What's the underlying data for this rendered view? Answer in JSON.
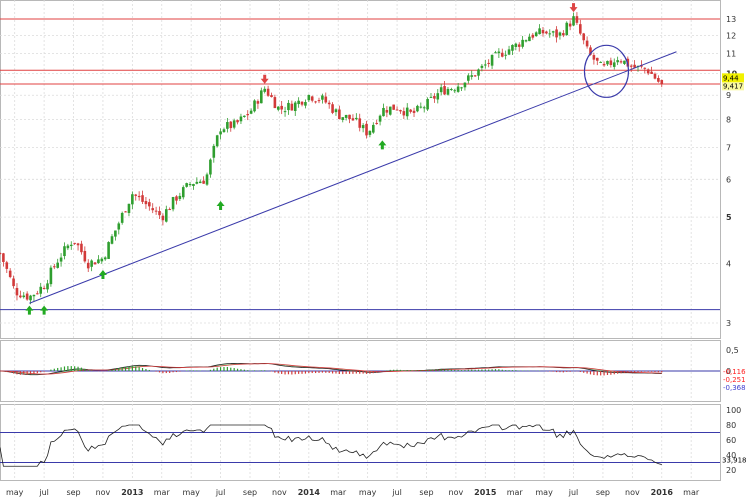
{
  "colors": {
    "up": "#2f9e2f",
    "down": "#d23a3a",
    "trendline": "#3a3aaa",
    "level": "#e14040",
    "grid": "#dcdcdc",
    "macd_fill_pos": "#7acb7a",
    "macd_fill_neg": "#e89aa6",
    "arrow_up": "#22aa22",
    "arrow_down": "#dd4444",
    "price_tag": "#f2f200",
    "indicator_tag_red": "#ff2020",
    "indicator_tag_blue": "#4040d0"
  },
  "chart_data": [
    {
      "type": "candlestick",
      "name": "price",
      "y_scale": "log",
      "ylim": [
        3.0,
        13.8
      ],
      "y_ticks": [
        "3",
        "4",
        "5",
        "6",
        "7",
        "8",
        "9",
        "10",
        "11",
        "12",
        "13"
      ],
      "x_ticks": [
        "may",
        "jul",
        "sep",
        "nov",
        "2013",
        "mar",
        "may",
        "jul",
        "sep",
        "nov",
        "2014",
        "mar",
        "may",
        "jul",
        "sep",
        "nov",
        "2015",
        "mar",
        "may",
        "jul",
        "sep",
        "nov",
        "2016",
        "mar"
      ],
      "x_ticks_bold": [
        "2013",
        "2014",
        "2015",
        "2016"
      ],
      "last_price_label": "9,44",
      "second_price_label": "9,417",
      "horizontal_levels": [
        13.0,
        10.15,
        9.5,
        3.2
      ],
      "trendline": {
        "from": [
          "2012-06",
          3.3
        ],
        "to": [
          "2016-02",
          11.1
        ]
      },
      "weekly_close_approx": [
        [
          "2012-04",
          4.2
        ],
        [
          "2012-05",
          3.5
        ],
        [
          "2012-06",
          3.4
        ],
        [
          "2012-07",
          3.6
        ],
        [
          "2012-08",
          4.1
        ],
        [
          "2012-09",
          4.5
        ],
        [
          "2012-10",
          4.0
        ],
        [
          "2012-11",
          4.1
        ],
        [
          "2012-12",
          4.8
        ],
        [
          "2013-01",
          5.6
        ],
        [
          "2013-02",
          5.3
        ],
        [
          "2013-03",
          5.0
        ],
        [
          "2013-04",
          5.5
        ],
        [
          "2013-05",
          5.9
        ],
        [
          "2013-06",
          6.0
        ],
        [
          "2013-07",
          7.7
        ],
        [
          "2013-08",
          7.8
        ],
        [
          "2013-09",
          8.3
        ],
        [
          "2013-10",
          9.3
        ],
        [
          "2013-11",
          8.4
        ],
        [
          "2013-12",
          8.6
        ],
        [
          "2014-01",
          9.0
        ],
        [
          "2014-02",
          8.8
        ],
        [
          "2014-03",
          8.2
        ],
        [
          "2014-04",
          8.0
        ],
        [
          "2014-05",
          7.5
        ],
        [
          "2014-06",
          8.4
        ],
        [
          "2014-07",
          8.5
        ],
        [
          "2014-08",
          8.2
        ],
        [
          "2014-09",
          8.6
        ],
        [
          "2014-10",
          9.2
        ],
        [
          "2014-11",
          9.4
        ],
        [
          "2014-12",
          9.8
        ],
        [
          "2015-01",
          10.4
        ],
        [
          "2015-02",
          11.0
        ],
        [
          "2015-03",
          11.4
        ],
        [
          "2015-04",
          12.0
        ],
        [
          "2015-05",
          12.2
        ],
        [
          "2015-06",
          12.0
        ],
        [
          "2015-07",
          13.0
        ],
        [
          "2015-08",
          11.0
        ],
        [
          "2015-09",
          10.2
        ],
        [
          "2015-10",
          10.8
        ],
        [
          "2015-11",
          10.3
        ],
        [
          "2015-12",
          10.2
        ],
        [
          "2016-01",
          9.44
        ]
      ],
      "signals_up": [
        [
          "2012-06",
          3.2
        ],
        [
          "2012-07",
          3.2
        ],
        [
          "2012-11",
          3.8
        ],
        [
          "2013-07",
          5.3
        ],
        [
          "2014-06",
          7.1
        ]
      ],
      "signals_down": [
        [
          "2013-10",
          9.7
        ],
        [
          "2015-07",
          13.7
        ]
      ]
    },
    {
      "type": "line",
      "name": "macd",
      "ylim": [
        -0.6,
        0.6
      ],
      "y_ticks": [
        "0,5",
        "0"
      ],
      "tag_labels": [
        "-0,116",
        "-0,251",
        "-0,368"
      ]
    },
    {
      "type": "line",
      "name": "rsi",
      "ylim": [
        0,
        100
      ],
      "y_ticks": [
        "100",
        "80",
        "60",
        "40",
        "20"
      ],
      "levels": [
        70,
        30
      ],
      "last_value_label": "33,918"
    }
  ]
}
